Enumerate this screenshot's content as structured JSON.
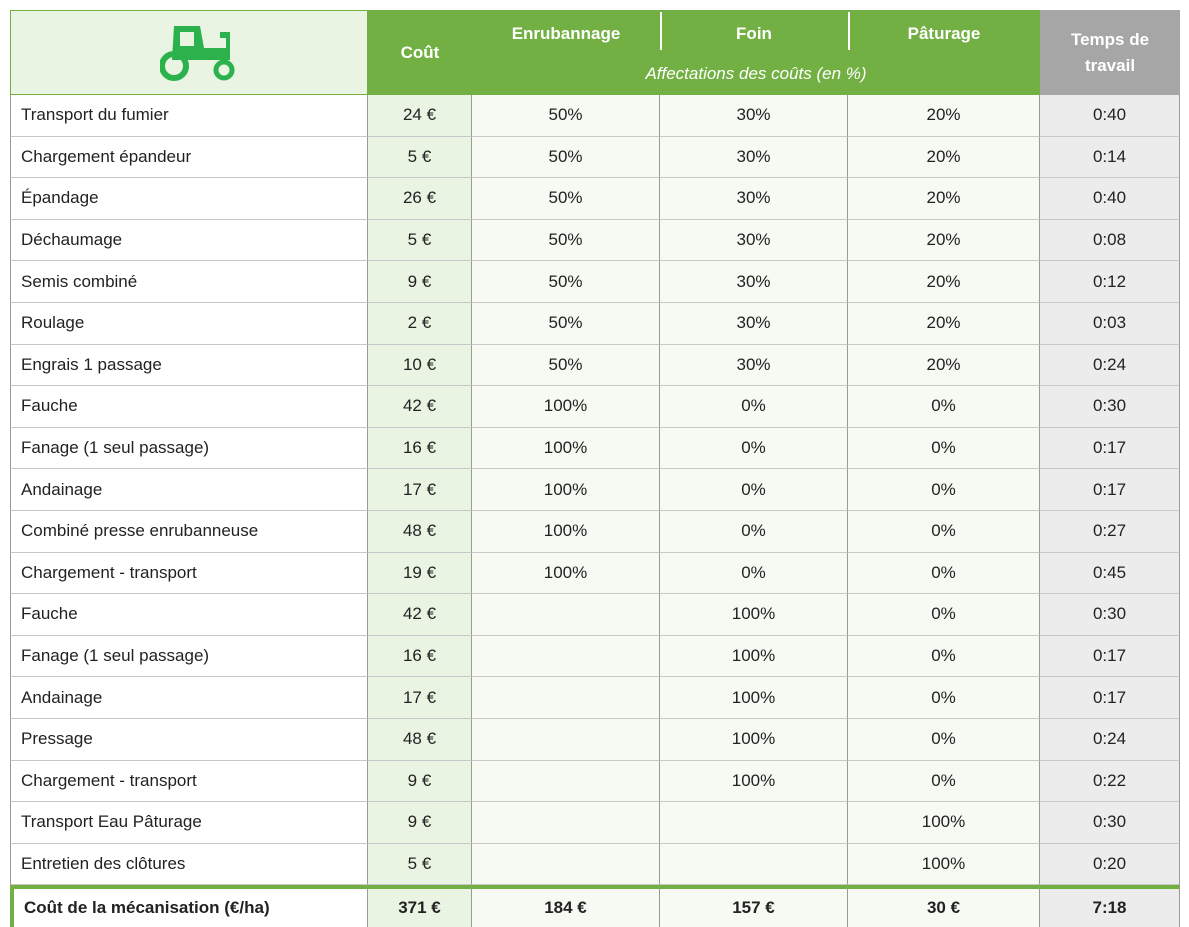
{
  "header": {
    "cost": "Coût",
    "columns": [
      "Enrubannage",
      "Foin",
      "Pâturage"
    ],
    "subtitle": "Affectations des coûts (en %)",
    "time": "Temps de travail"
  },
  "rows": [
    [
      "Transport du fumier",
      "24 €",
      "50%",
      "30%",
      "20%",
      "0:40"
    ],
    [
      "Chargement épandeur",
      "5 €",
      "50%",
      "30%",
      "20%",
      "0:14"
    ],
    [
      "Épandage",
      "26 €",
      "50%",
      "30%",
      "20%",
      "0:40"
    ],
    [
      "Déchaumage",
      "5 €",
      "50%",
      "30%",
      "20%",
      "0:08"
    ],
    [
      "Semis combiné",
      "9 €",
      "50%",
      "30%",
      "20%",
      "0:12"
    ],
    [
      "Roulage",
      "2 €",
      "50%",
      "30%",
      "20%",
      "0:03"
    ],
    [
      "Engrais 1 passage",
      "10 €",
      "50%",
      "30%",
      "20%",
      "0:24"
    ],
    [
      "Fauche",
      "42 €",
      "100%",
      "0%",
      "0%",
      "0:30"
    ],
    [
      "Fanage (1 seul passage)",
      "16 €",
      "100%",
      "0%",
      "0%",
      "0:17"
    ],
    [
      "Andainage",
      "17 €",
      "100%",
      "0%",
      "0%",
      "0:17"
    ],
    [
      "Combiné presse enrubanneuse",
      "48 €",
      "100%",
      "0%",
      "0%",
      "0:27"
    ],
    [
      "Chargement - transport",
      "19 €",
      "100%",
      "0%",
      "0%",
      "0:45"
    ],
    [
      "Fauche",
      "42 €",
      null,
      "100%",
      "0%",
      "0:30"
    ],
    [
      "Fanage (1 seul passage)",
      "16 €",
      null,
      "100%",
      "0%",
      "0:17"
    ],
    [
      "Andainage",
      "17 €",
      null,
      "100%",
      "0%",
      "0:17"
    ],
    [
      "Pressage",
      "48 €",
      null,
      "100%",
      "0%",
      "0:24"
    ],
    [
      "Chargement - transport",
      "9 €",
      null,
      "100%",
      "0%",
      "0:22"
    ],
    [
      "Transport Eau Pâturage",
      "9 €",
      null,
      null,
      "100%",
      "0:30"
    ],
    [
      "Entretien des clôtures",
      "5 €",
      null,
      null,
      "100%",
      "0:20"
    ]
  ],
  "total": [
    "Coût de la mécanisation (€/ha)",
    "371 €",
    "184 €",
    "157 €",
    "30 €",
    "7:18"
  ]
}
